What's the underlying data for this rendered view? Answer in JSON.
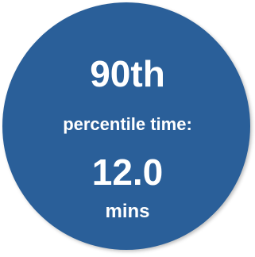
{
  "badge": {
    "headline": "90th",
    "subtitle": "percentile time:",
    "value": "12.0",
    "unit": "mins",
    "colors": {
      "circle": "#2a5f99",
      "text": "#ffffff",
      "background": "#ffffff"
    }
  }
}
